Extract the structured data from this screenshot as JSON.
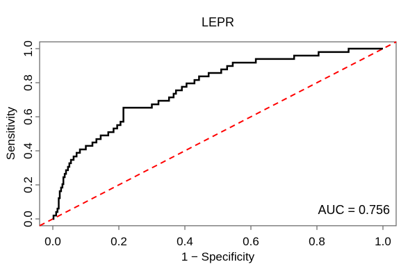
{
  "figure": {
    "title": "LEPR",
    "xlabel": "1 − Specificity",
    "ylabel": "Sensitivity",
    "annotation": "AUC = 0.756"
  },
  "chart_data": {
    "type": "line",
    "subtype": "roc-step-curve",
    "title": "LEPR",
    "xlabel": "1 − Specificity",
    "ylabel": "Sensitivity",
    "xlim": [
      0,
      1
    ],
    "ylim": [
      0,
      1
    ],
    "axis_expansion": 0.04,
    "grid": false,
    "legend": "none",
    "x_ticks": [
      0.0,
      0.2,
      0.4,
      0.6,
      0.8,
      1.0
    ],
    "x_tick_labels": [
      "0.0",
      "0.2",
      "0.4",
      "0.6",
      "0.8",
      "1.0"
    ],
    "y_ticks": [
      0.0,
      0.2,
      0.4,
      0.6,
      0.8,
      1.0
    ],
    "y_tick_labels": [
      "0.0",
      "0.2",
      "0.4",
      "0.6",
      "0.8",
      "1.0"
    ],
    "auc": 0.756,
    "annotation": "AUC = 0.756",
    "colors": {
      "curve": "#000000",
      "diagonal": "#ff0000",
      "axis": "#6e6e6e",
      "text": "#000000",
      "background": "#ffffff"
    },
    "series": [
      {
        "name": "ROC curve",
        "draw": "step",
        "color": "#000000",
        "width": 2.5,
        "points": [
          [
            0.0,
            0.0
          ],
          [
            0.002,
            0.0
          ],
          [
            0.002,
            0.02
          ],
          [
            0.01,
            0.02
          ],
          [
            0.01,
            0.041
          ],
          [
            0.014,
            0.041
          ],
          [
            0.014,
            0.061
          ],
          [
            0.018,
            0.061
          ],
          [
            0.018,
            0.122
          ],
          [
            0.021,
            0.122
          ],
          [
            0.021,
            0.163
          ],
          [
            0.025,
            0.163
          ],
          [
            0.025,
            0.184
          ],
          [
            0.029,
            0.184
          ],
          [
            0.029,
            0.204
          ],
          [
            0.032,
            0.204
          ],
          [
            0.032,
            0.245
          ],
          [
            0.036,
            0.245
          ],
          [
            0.036,
            0.265
          ],
          [
            0.04,
            0.265
          ],
          [
            0.04,
            0.286
          ],
          [
            0.046,
            0.286
          ],
          [
            0.046,
            0.306
          ],
          [
            0.05,
            0.306
          ],
          [
            0.05,
            0.327
          ],
          [
            0.055,
            0.327
          ],
          [
            0.055,
            0.347
          ],
          [
            0.063,
            0.347
          ],
          [
            0.063,
            0.367
          ],
          [
            0.072,
            0.367
          ],
          [
            0.072,
            0.388
          ],
          [
            0.082,
            0.388
          ],
          [
            0.082,
            0.408
          ],
          [
            0.1,
            0.408
          ],
          [
            0.1,
            0.429
          ],
          [
            0.12,
            0.429
          ],
          [
            0.12,
            0.449
          ],
          [
            0.132,
            0.449
          ],
          [
            0.132,
            0.469
          ],
          [
            0.145,
            0.469
          ],
          [
            0.145,
            0.49
          ],
          [
            0.168,
            0.49
          ],
          [
            0.168,
            0.51
          ],
          [
            0.184,
            0.51
          ],
          [
            0.184,
            0.531
          ],
          [
            0.195,
            0.531
          ],
          [
            0.195,
            0.551
          ],
          [
            0.205,
            0.551
          ],
          [
            0.205,
            0.571
          ],
          [
            0.214,
            0.571
          ],
          [
            0.214,
            0.653
          ],
          [
            0.3,
            0.653
          ],
          [
            0.3,
            0.673
          ],
          [
            0.32,
            0.673
          ],
          [
            0.32,
            0.694
          ],
          [
            0.352,
            0.694
          ],
          [
            0.352,
            0.714
          ],
          [
            0.366,
            0.714
          ],
          [
            0.366,
            0.735
          ],
          [
            0.373,
            0.735
          ],
          [
            0.373,
            0.755
          ],
          [
            0.391,
            0.755
          ],
          [
            0.391,
            0.776
          ],
          [
            0.405,
            0.776
          ],
          [
            0.405,
            0.796
          ],
          [
            0.429,
            0.796
          ],
          [
            0.429,
            0.816
          ],
          [
            0.443,
            0.816
          ],
          [
            0.443,
            0.837
          ],
          [
            0.472,
            0.837
          ],
          [
            0.472,
            0.857
          ],
          [
            0.51,
            0.857
          ],
          [
            0.51,
            0.878
          ],
          [
            0.528,
            0.878
          ],
          [
            0.528,
            0.898
          ],
          [
            0.545,
            0.898
          ],
          [
            0.545,
            0.918
          ],
          [
            0.615,
            0.918
          ],
          [
            0.615,
            0.939
          ],
          [
            0.731,
            0.939
          ],
          [
            0.731,
            0.959
          ],
          [
            0.805,
            0.959
          ],
          [
            0.805,
            0.98
          ],
          [
            0.896,
            0.98
          ],
          [
            0.896,
            1.0
          ],
          [
            1.0,
            1.0
          ]
        ]
      },
      {
        "name": "chance diagonal",
        "draw": "line",
        "style": "dashed",
        "color": "#ff0000",
        "width": 2,
        "points": [
          [
            0,
            0
          ],
          [
            1,
            1
          ]
        ]
      }
    ]
  }
}
